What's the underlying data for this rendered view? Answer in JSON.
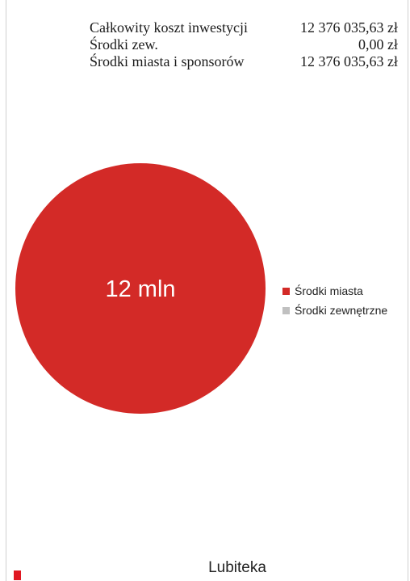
{
  "summary": {
    "rows": [
      {
        "label": "Całkowity koszt inwestycji",
        "value": "12 376 035,63 zł"
      },
      {
        "label": "Środki zew.",
        "value": "0,00 zł"
      },
      {
        "label": "Środki miasta i sponsorów",
        "value": "12 376 035,63 zł"
      }
    ]
  },
  "chart_data": {
    "type": "pie",
    "categories": [
      "Środki miasta",
      "Środki zewnętrzne"
    ],
    "values": [
      12376035.63,
      0
    ],
    "colors": [
      "#d32a27",
      "#c0c0c0"
    ],
    "slice_label": "12 mln",
    "legend_position": "right"
  },
  "footer": {
    "label": "Lubiteka",
    "mark_color": "#e01822"
  }
}
